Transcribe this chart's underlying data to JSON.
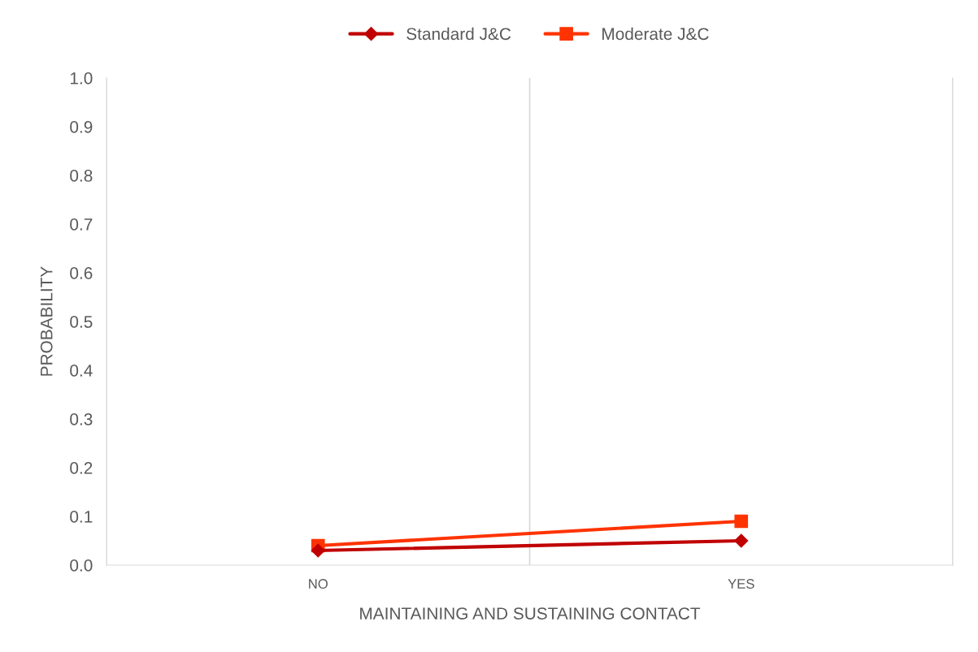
{
  "chart_data": {
    "type": "line",
    "xlabel": "MAINTAINING AND SUSTAINING CONTACT",
    "ylabel": "PROBABILITY",
    "categories": [
      "NO",
      "YES"
    ],
    "series": [
      {
        "name": "Standard J&C",
        "color": "#c00000",
        "values": [
          0.03,
          0.05
        ],
        "marker": "diamond"
      },
      {
        "name": "Moderate J&C",
        "color": "#ff3300",
        "values": [
          0.04,
          0.09
        ],
        "marker": "square"
      }
    ],
    "ylim": [
      0,
      1
    ],
    "yticks": [
      {
        "value": 0,
        "label": "0.0"
      },
      {
        "value": 0.1,
        "label": "0.1"
      },
      {
        "value": 0.2,
        "label": "0.2"
      },
      {
        "value": 0.3,
        "label": "0.3"
      },
      {
        "value": 0.4,
        "label": "0.4"
      },
      {
        "value": 0.5,
        "label": "0.5"
      },
      {
        "value": 0.6,
        "label": "0.6"
      },
      {
        "value": 0.7,
        "label": "0.7"
      },
      {
        "value": 0.8,
        "label": "0.8"
      },
      {
        "value": 0.9,
        "label": "0.9"
      },
      {
        "value": 1,
        "label": "1.0"
      }
    ],
    "grid": "x",
    "legend": "top",
    "line_style": "solid"
  }
}
